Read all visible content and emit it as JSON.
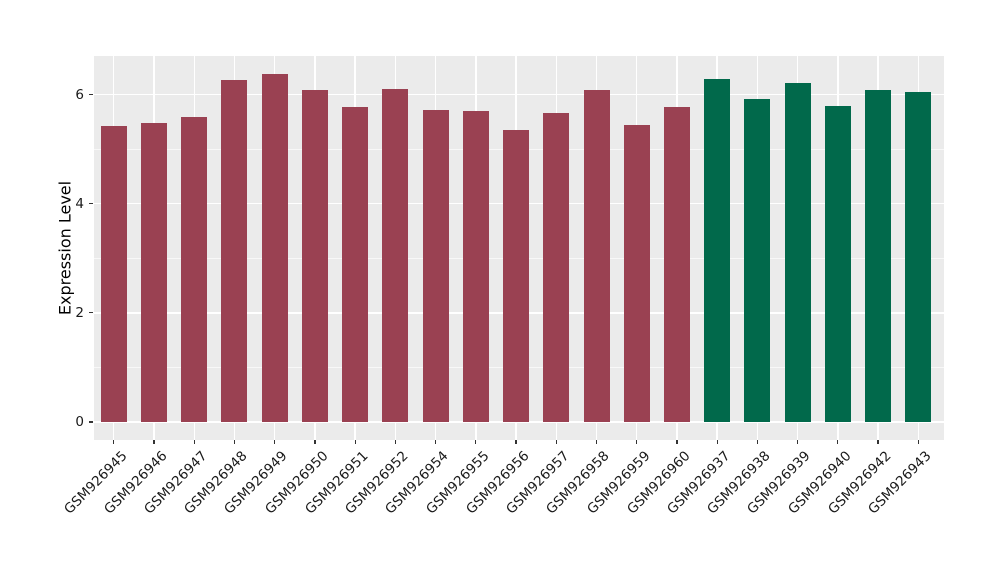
{
  "chart_data": {
    "type": "bar",
    "title": "",
    "xlabel": "",
    "ylabel": "Expression Level",
    "ylim": [
      0,
      6.7
    ],
    "y_ticks": [
      0,
      2,
      4,
      6
    ],
    "y_minor_ticks": [
      1,
      3,
      5
    ],
    "legend": "none",
    "grid": "on",
    "panel_background": "#EBEBEB",
    "gridline_color": "#FFFFFF",
    "axis_text_color": "#1A1A1A",
    "series": [
      {
        "color": "#9A4152",
        "categories": [
          "GSM926945",
          "GSM926946",
          "GSM926947",
          "GSM926948",
          "GSM926949",
          "GSM926950",
          "GSM926951",
          "GSM926952",
          "GSM926954",
          "GSM926955",
          "GSM926956",
          "GSM926957",
          "GSM926958",
          "GSM926959",
          "GSM926960"
        ],
        "values": [
          5.42,
          5.48,
          5.59,
          6.27,
          6.37,
          6.08,
          5.78,
          6.1,
          5.71,
          5.7,
          5.35,
          5.67,
          6.08,
          5.44,
          5.78
        ]
      },
      {
        "color": "#01694B",
        "categories": [
          "GSM926937",
          "GSM926938",
          "GSM926939",
          "GSM926940",
          "GSM926942",
          "GSM926943"
        ],
        "values": [
          6.28,
          5.92,
          6.21,
          5.79,
          6.09,
          6.04
        ]
      }
    ]
  }
}
